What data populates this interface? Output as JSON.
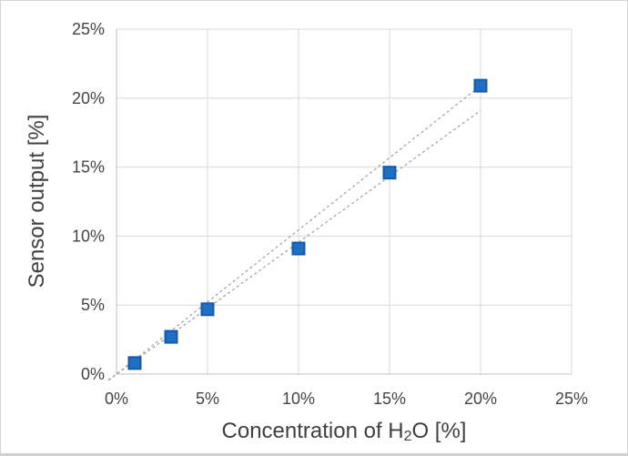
{
  "chart_data": {
    "type": "scatter",
    "title": "",
    "xlabel_parts": {
      "pre": "Concentration of H",
      "sub": "2",
      "post": "O [%]"
    },
    "ylabel": "Sensor output [%]",
    "xlim": [
      0,
      25
    ],
    "ylim": [
      0,
      25
    ],
    "grid": true,
    "legend": "none",
    "x_ticks": [
      {
        "value": 0,
        "label": "0%"
      },
      {
        "value": 5,
        "label": "5%"
      },
      {
        "value": 10,
        "label": "10%"
      },
      {
        "value": 15,
        "label": "15%"
      },
      {
        "value": 20,
        "label": "20%"
      },
      {
        "value": 25,
        "label": "25%"
      }
    ],
    "y_ticks": [
      {
        "value": 0,
        "label": "0%"
      },
      {
        "value": 5,
        "label": "5%"
      },
      {
        "value": 10,
        "label": "10%"
      },
      {
        "value": 15,
        "label": "15%"
      },
      {
        "value": 20,
        "label": "20%"
      },
      {
        "value": 25,
        "label": "25%"
      }
    ],
    "series": [
      {
        "name": "sensor-output",
        "marker": "square",
        "points": [
          {
            "x": 1,
            "y": 0.8
          },
          {
            "x": 3,
            "y": 2.7
          },
          {
            "x": 5,
            "y": 4.7
          },
          {
            "x": 10,
            "y": 9.1
          },
          {
            "x": 15,
            "y": 14.6
          },
          {
            "x": 20,
            "y": 20.9
          }
        ]
      }
    ],
    "trendlines": [
      {
        "name": "trendline-upper",
        "style": "dashed",
        "x1": 0,
        "y1": 0,
        "x2": 20,
        "y2": 20.9
      },
      {
        "name": "trendline-lower",
        "style": "dashed",
        "x1": 0,
        "y1": 0,
        "x2": 20,
        "y2": 19.1
      }
    ]
  },
  "colors": {
    "marker_fill": "#1f6fc4",
    "marker_border": "#1659a8",
    "gridline": "#d9d9d9",
    "axis_line": "#bfbfbf",
    "trendline": "#9e9e9e",
    "tick_text": "#444444",
    "title_text": "#404040",
    "background": "#ffffff",
    "frame_border": "#d4d4d4"
  }
}
